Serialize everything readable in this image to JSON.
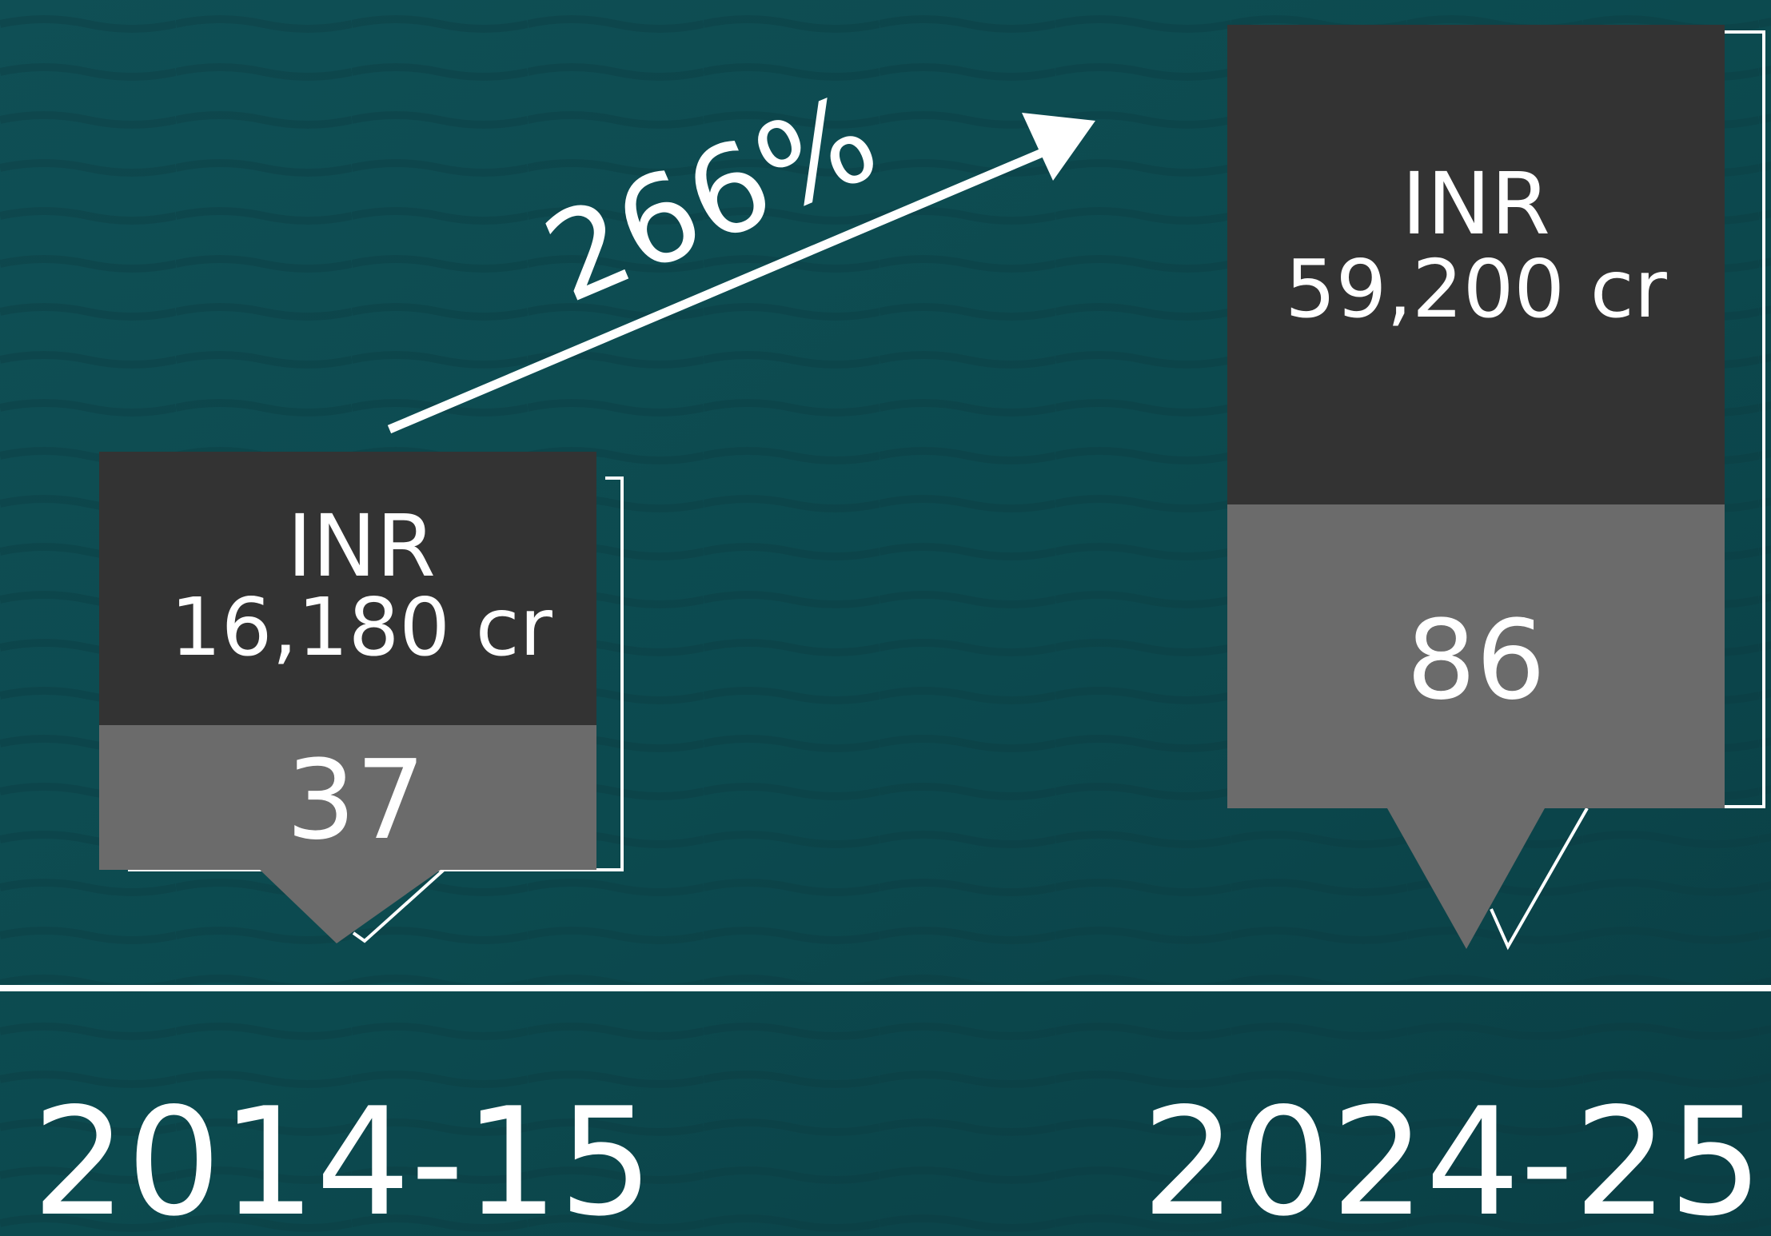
{
  "growth": "266%",
  "items": [
    {
      "currency": "INR",
      "amount": "16,180 cr",
      "count": "37",
      "period": "2014-15"
    },
    {
      "currency": "INR",
      "amount": "59,200 cr",
      "count": "86",
      "period": "2024-25"
    }
  ]
}
